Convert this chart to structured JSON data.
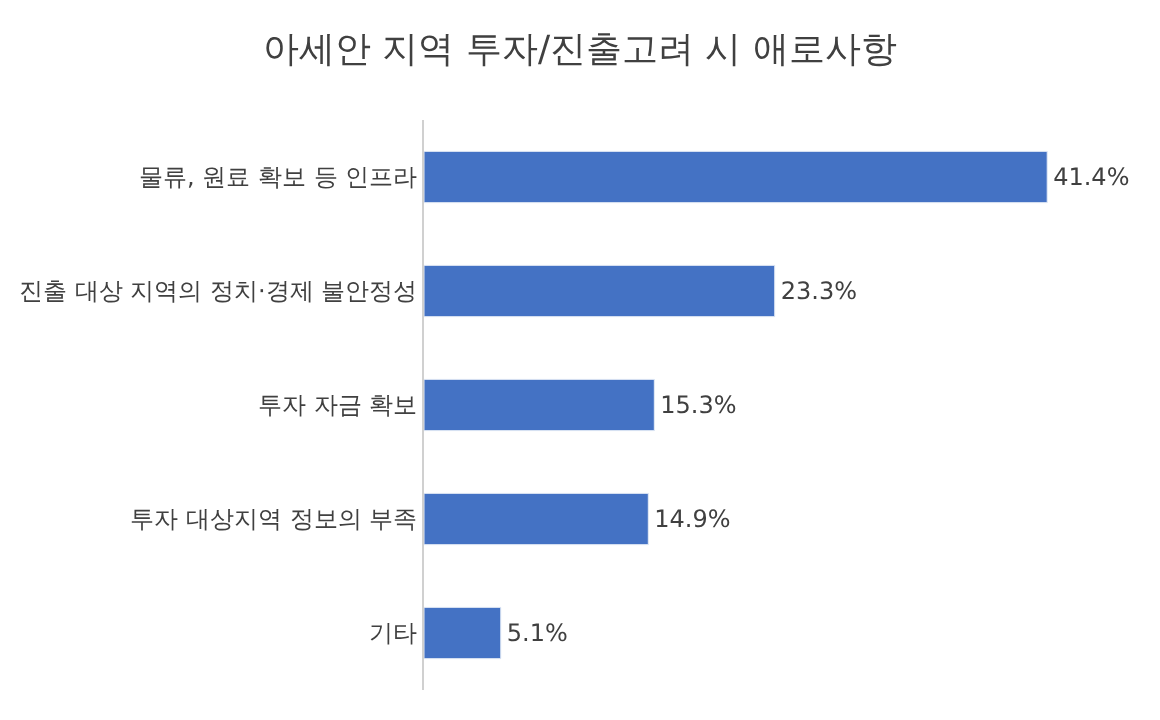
{
  "chart_data": {
    "type": "bar",
    "orientation": "horizontal",
    "title": "아세안 지역 투자/진출고려 시 애로사항",
    "categories": [
      "물류, 원료 확보 등 인프라",
      "진출 대상 지역의 정치·경제 불안정성",
      "투자 자금 확보",
      "투자 대상지역 정보의 부족",
      "기타"
    ],
    "values": [
      41.4,
      23.3,
      15.3,
      14.9,
      5.1
    ],
    "value_labels": [
      "41.4%",
      "23.3%",
      "15.3%",
      "14.9%",
      "5.1%"
    ],
    "color": "#4472c4",
    "legend": false
  }
}
